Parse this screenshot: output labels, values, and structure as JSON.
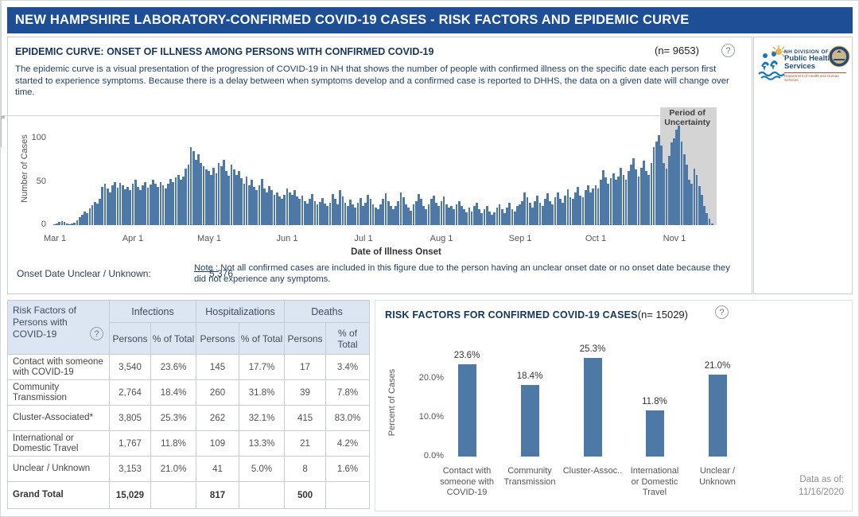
{
  "page": {
    "title": "NEW HAMPSHIRE LABORATORY-CONFIRMED COVID-19 CASES - RISK FACTORS AND EPIDEMIC CURVE",
    "data_as_of_label": "Data as of:",
    "data_as_of_date": "11/16/2020"
  },
  "logos": {
    "dphs_line1": "NH DIVISION OF",
    "dphs_line2": "Public Health Services",
    "dphs_line3": "Department of Health and Human Services"
  },
  "epidemic_panel": {
    "heading": "EPIDEMIC CURVE: ONSET OF ILLNESS AMONG PERSONS WITH CONFIRMED COVID-19",
    "n_label": "(n= 9653)",
    "description": "The epidemic curve is a visual presentation of the progression of COVID-19 in NH that shows the number of people with confirmed illness on the specific date each person first started to experience symptoms. Because there is a delay between when symptoms develop and a confirmed case is reported to DHHS, the data on a given date will change over time.",
    "onset_label": "Onset Date Unclear / Unknown:",
    "onset_value": "5,376",
    "note_label": "Note :",
    "note_text": "  Not all confirmed cases are included in this figure due to the person having an unclear onset date or no onset date because they did not experience any symptoms."
  },
  "chart_data": [
    {
      "type": "bar",
      "title": "EPIDEMIC CURVE: ONSET OF ILLNESS AMONG PERSONS WITH CONFIRMED COVID-19",
      "xlabel": "Date of Illness Onset",
      "ylabel": "Number of Cases",
      "x_start": "Mar 1 2020",
      "x_end": "Nov 16 2020",
      "x_tick_labels": [
        "Mar 1",
        "Apr 1",
        "May 1",
        "Jun 1",
        "Jul 1",
        "Aug 1",
        "Sep 1",
        "Oct 1",
        "Nov 1"
      ],
      "x_tick_day_index": [
        0,
        31,
        61,
        92,
        122,
        153,
        184,
        214,
        245
      ],
      "y_ticks": [
        0,
        50,
        100
      ],
      "ylim": [
        0,
        130
      ],
      "bar_color": "#4e79a7",
      "uncertainty_region": {
        "label_lines": [
          "Period of",
          "Uncertainty"
        ],
        "start_day_index": 240,
        "color": "#d4d4d4"
      },
      "values": [
        1,
        2,
        4,
        5,
        4,
        2,
        1,
        2,
        3,
        6,
        9,
        12,
        16,
        14,
        19,
        23,
        27,
        25,
        30,
        44,
        48,
        42,
        38,
        46,
        50,
        43,
        49,
        46,
        41,
        44,
        40,
        48,
        52,
        44,
        40,
        46,
        50,
        43,
        47,
        52,
        48,
        44,
        50,
        46,
        42,
        48,
        53,
        50,
        55,
        58,
        52,
        56,
        65,
        70,
        90,
        85,
        75,
        82,
        72,
        68,
        64,
        62,
        58,
        66,
        60,
        72,
        68,
        75,
        62,
        57,
        70,
        64,
        58,
        62,
        54,
        48,
        56,
        46,
        52,
        44,
        40,
        46,
        53,
        42,
        38,
        45,
        40,
        35,
        38,
        33,
        30,
        35,
        42,
        38,
        35,
        40,
        33,
        30,
        34,
        28,
        25,
        30,
        36,
        28,
        24,
        27,
        31,
        25,
        22,
        26,
        36,
        30,
        24,
        40,
        33,
        26,
        22,
        29,
        24,
        20,
        26,
        31,
        22,
        26,
        35,
        30,
        24,
        20,
        18,
        24,
        30,
        37,
        28,
        22,
        18,
        22,
        28,
        38,
        32,
        24,
        20,
        17,
        24,
        28,
        36,
        30,
        22,
        18,
        24,
        30,
        34,
        26,
        22,
        28,
        33,
        24,
        20,
        22,
        18,
        24,
        28,
        22,
        18,
        15,
        20,
        16,
        22,
        26,
        18,
        14,
        18,
        22,
        16,
        12,
        15,
        20,
        24,
        18,
        14,
        20,
        26,
        18,
        16,
        22,
        24,
        28,
        38,
        32,
        26,
        20,
        28,
        34,
        26,
        22,
        30,
        37,
        28,
        24,
        32,
        38,
        30,
        26,
        34,
        41,
        32,
        30,
        38,
        44,
        34,
        32,
        40,
        46,
        38,
        42,
        46,
        42,
        52,
        63,
        55,
        48,
        54,
        60,
        52,
        56,
        66,
        58,
        52,
        62,
        70,
        77,
        64,
        56,
        66,
        74,
        62,
        58,
        72,
        90,
        96,
        104,
        92,
        72,
        65,
        80,
        95,
        100,
        110,
        115,
        96,
        82,
        70,
        52,
        48,
        65,
        58,
        45,
        35,
        22,
        14,
        7,
        2
      ]
    },
    {
      "type": "bar",
      "title": "RISK FACTORS FOR CONFIRMED COVID-19 CASES",
      "n_label": "(n= 15029)",
      "ylabel": "Percent of Cases",
      "categories": [
        [
          "Contact with",
          "someone with",
          "COVID-19"
        ],
        [
          "Community",
          "Transmission"
        ],
        [
          "Cluster-Assoc.."
        ],
        [
          "International",
          "or Domestic",
          "Travel"
        ],
        [
          "Unclear /",
          "Unknown"
        ]
      ],
      "values": [
        23.6,
        18.4,
        25.3,
        11.8,
        21.0
      ],
      "data_labels": [
        "23.6%",
        "18.4%",
        "25.3%",
        "11.8%",
        "21.0%"
      ],
      "y_tick_values": [
        0,
        10,
        20
      ],
      "y_tick_labels": [
        "0.0%",
        "10.0%",
        "20.0%"
      ],
      "ylim": [
        0,
        30
      ],
      "bar_color": "#4e79a7"
    }
  ],
  "risk_table": {
    "corner_header_lines": [
      "Risk Factors of",
      "Persons with",
      "COVID-19"
    ],
    "groups": [
      "Infections",
      "Hospitalizations",
      "Deaths"
    ],
    "sub_headers": [
      "Persons",
      "% of Total"
    ],
    "rows": [
      {
        "label": "Contact with someone with COVID-19",
        "cells": [
          "3,540",
          "23.6%",
          "145",
          "17.7%",
          "17",
          "3.4%"
        ]
      },
      {
        "label": "Community Transmission",
        "cells": [
          "2,764",
          "18.4%",
          "260",
          "31.8%",
          "39",
          "7.8%"
        ]
      },
      {
        "label": "Cluster-Associated*",
        "cells": [
          "3,805",
          "25.3%",
          "262",
          "32.1%",
          "415",
          "83.0%"
        ]
      },
      {
        "label": "International or Domestic Travel",
        "cells": [
          "1,767",
          "11.8%",
          "109",
          "13.3%",
          "21",
          "4.2%"
        ]
      },
      {
        "label": "Unclear / Unknown",
        "cells": [
          "3,153",
          "21.0%",
          "41",
          "5.0%",
          "8",
          "1.6%"
        ]
      },
      {
        "label": "Grand Total",
        "cells": [
          "15,029",
          "",
          "817",
          "",
          "500",
          ""
        ],
        "is_total": true
      }
    ]
  }
}
